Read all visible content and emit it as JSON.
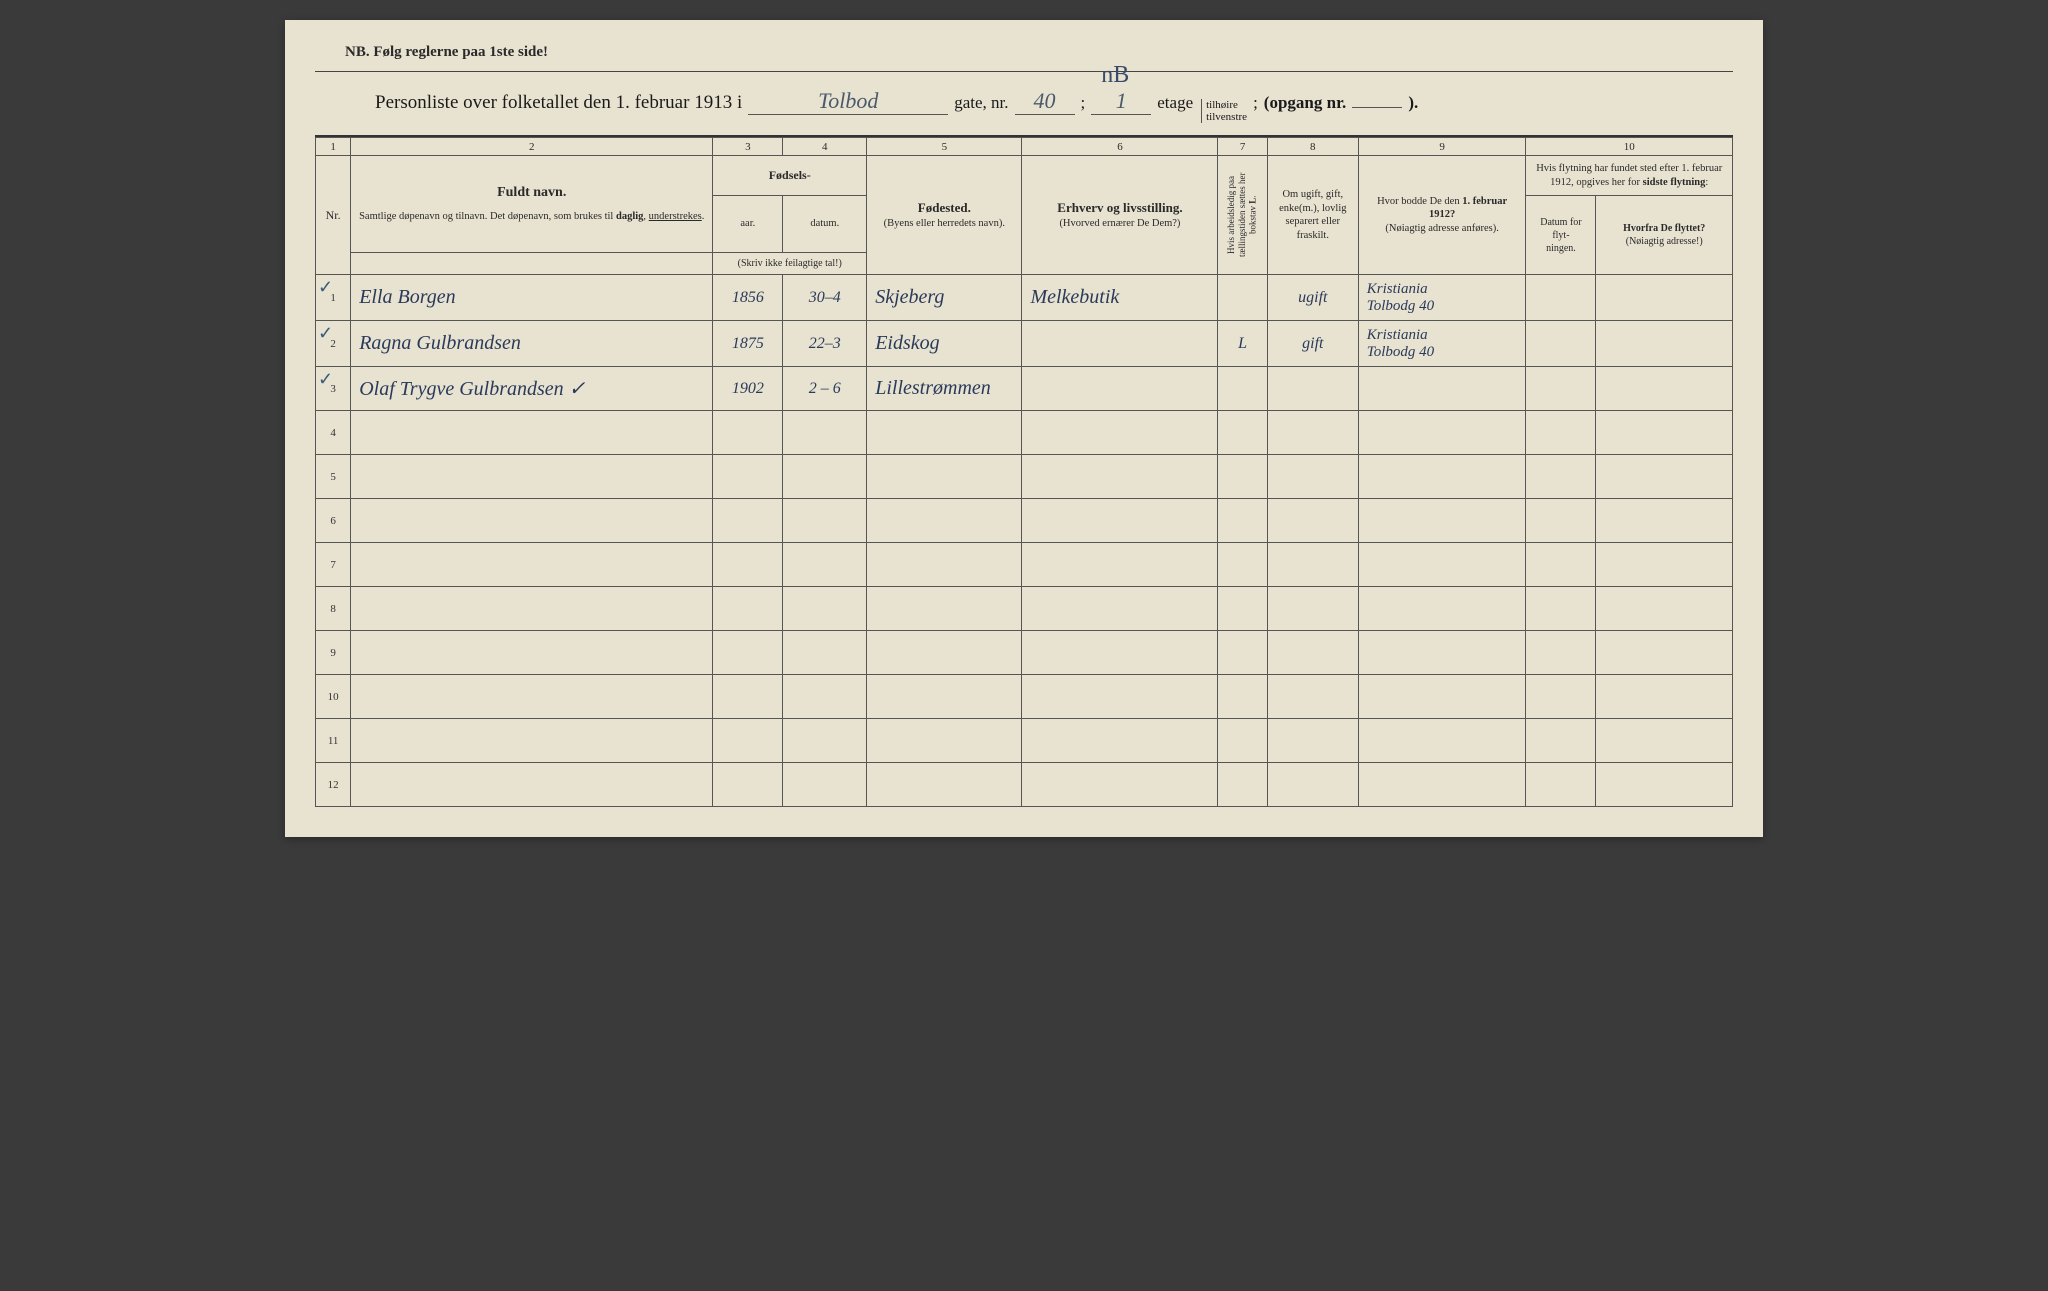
{
  "nb_text": "NB.  Følg reglerne paa 1ste side!",
  "header": {
    "prefix": "Personliste over folketallet den 1. februar 1913 i",
    "street_handwritten": "Tolbod",
    "gate_label": "gate, nr.",
    "gate_nr": "40",
    "semicolon": ";",
    "etage_nr": "1",
    "nb_mark": "nB",
    "etage_label": "etage",
    "side_top": "tilhøire",
    "side_bottom": "tilvenstre",
    "opgang_label": "(opgang nr.",
    "opgang_nr": "",
    "close": ")."
  },
  "column_numbers": [
    "1",
    "2",
    "3",
    "4",
    "5",
    "6",
    "7",
    "8",
    "9",
    "10"
  ],
  "headers": {
    "nr": "Nr.",
    "name_main": "Fuldt navn.",
    "name_sub": "Samtlige døpenavn og tilnavn. Det døpenavn, som brukes til daglig, understrekes.",
    "fodsels": "Fødsels-",
    "aar": "aar.",
    "datum": "datum.",
    "year_sub": "(Skriv ikke feilagtige tal!)",
    "fodested_main": "Fødested.",
    "fodested_sub": "(Byens eller herredets navn).",
    "erhverv_main": "Erhverv og livsstilling.",
    "erhverv_sub": "(Hvorved ernærer De Dem?)",
    "col7_vert": "Hvis arbeidsledig paa tællingstiden sættes her bokstav L.",
    "marital": "Om ugift, gift, enke(m.), lovlig separert eller fraskilt.",
    "addr1912_main": "Hvor bodde De den 1. februar 1912?",
    "addr1912_sub": "(Nøiagtig adresse anføres).",
    "move_main": "Hvis flytning har fundet sted efter 1. februar 1912, opgives her for sidste flytning:",
    "move_date": "Datum for flyt-ningen.",
    "move_from_main": "Hvorfra De flyttet?",
    "move_from_sub": "(Nøiagtig adresse!)"
  },
  "rows": [
    {
      "nr": "1",
      "check": true,
      "name": "Ella Borgen",
      "year": "1856",
      "date": "30–4",
      "place": "Skjeberg",
      "occupation": "Melkebutik",
      "col7": "",
      "marital": "ugift",
      "addr1912_line1": "Kristiania",
      "addr1912_line2": "Tolbodg 40",
      "move_date": "",
      "move_from": ""
    },
    {
      "nr": "2",
      "check": true,
      "name": "Ragna Gulbrandsen",
      "year": "1875",
      "date": "22–3",
      "place": "Eidskog",
      "occupation": "",
      "col7": "L",
      "marital": "gift",
      "addr1912_line1": "Kristiania",
      "addr1912_line2": "Tolbodg 40",
      "move_date": "",
      "move_from": ""
    },
    {
      "nr": "3",
      "check": true,
      "name": "Olaf Trygve Gulbrandsen ✓",
      "year": "1902",
      "date": "2 – 6",
      "place": "Lillestrømmen",
      "occupation": "",
      "col7": "",
      "marital": "",
      "addr1912_line1": "",
      "addr1912_line2": "",
      "move_date": "",
      "move_from": ""
    }
  ],
  "total_rows": 12,
  "colors": {
    "paper": "#e8e2d0",
    "ink_print": "#2a2a2a",
    "ink_hand": "#2a3a5a",
    "border": "#555555"
  }
}
